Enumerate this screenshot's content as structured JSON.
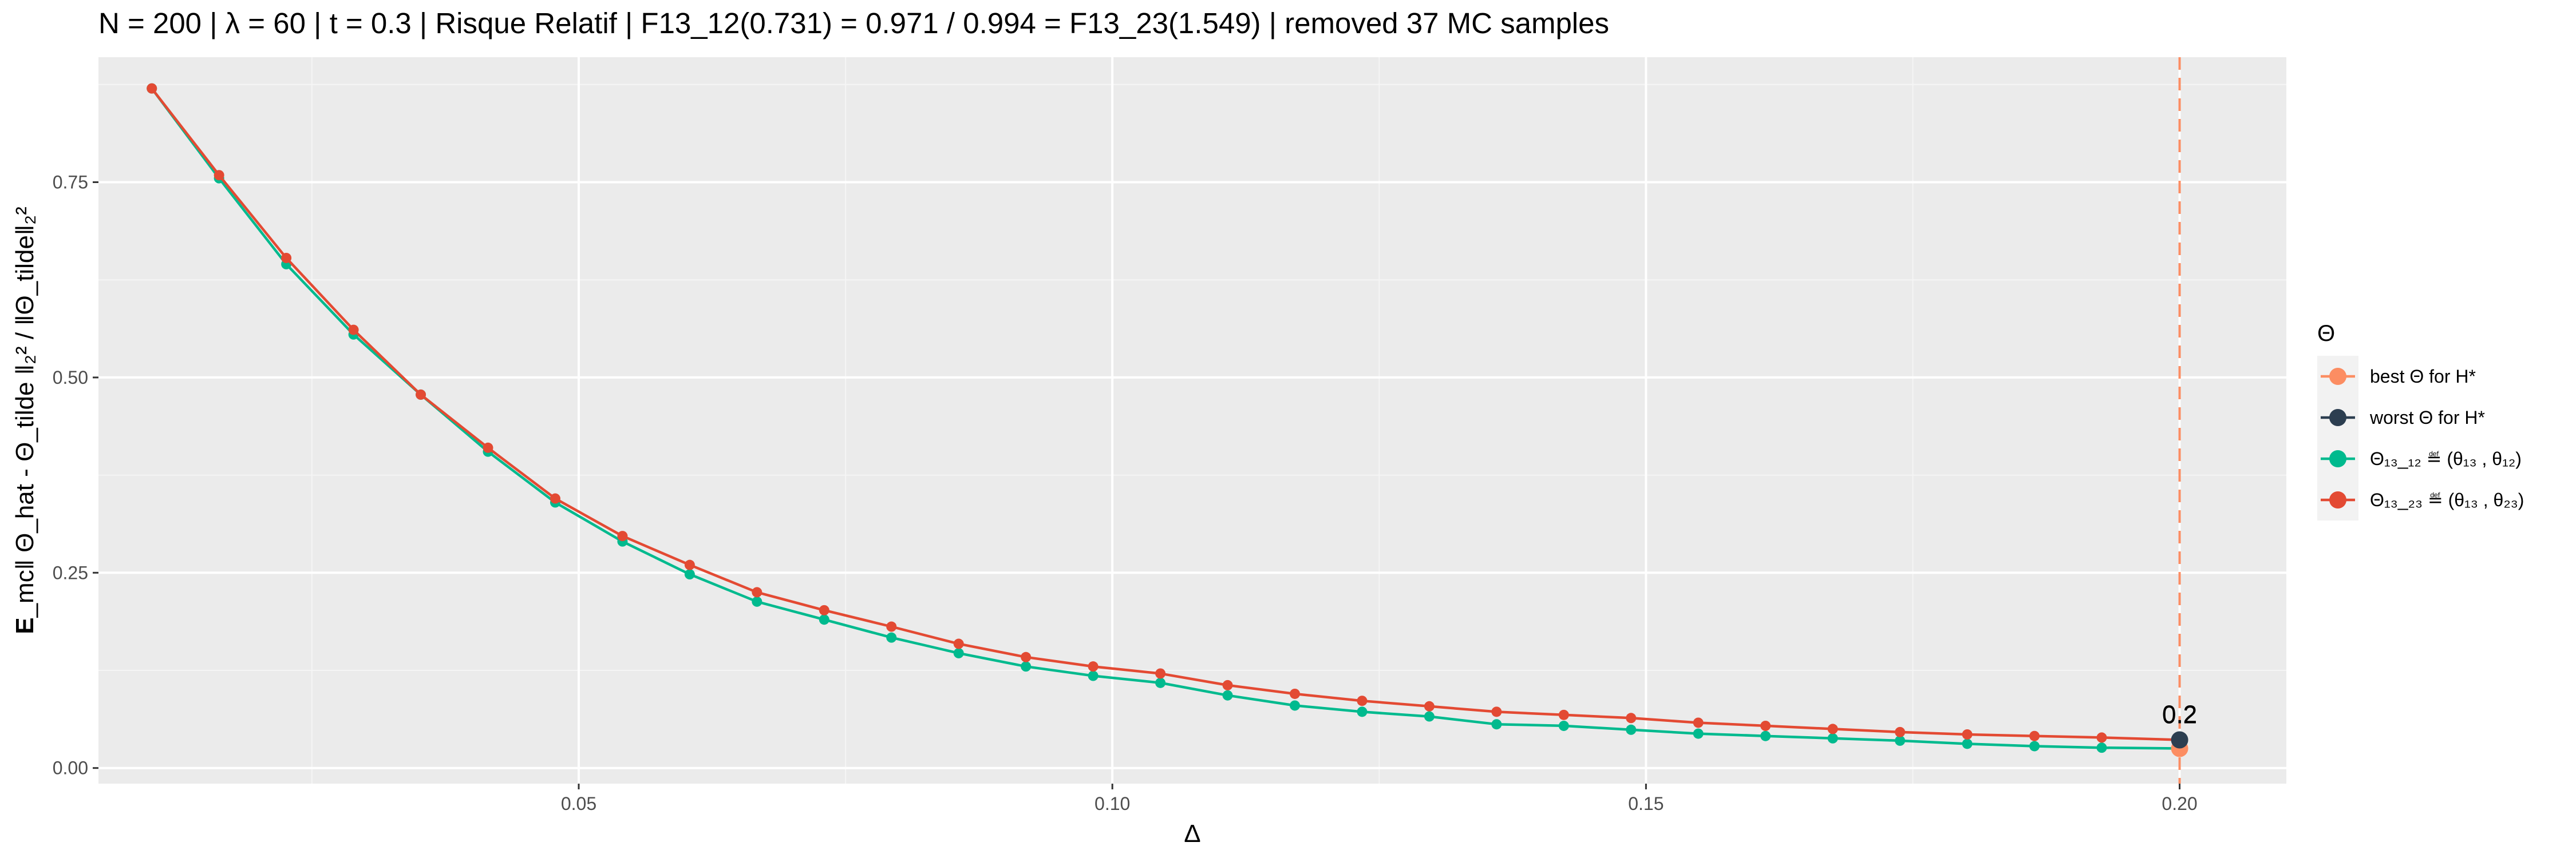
{
  "chart_data": {
    "type": "line",
    "title": "N = 200 | λ = 60 | t = 0.3 | Risque Relatif | F13_12(0.731) = 0.971 / 0.994 = F13_23(1.549) | removed 37 MC samples",
    "xlabel": "Δ",
    "ylabel": "E_mc‖ Θ_hat - Θ_tilde ‖₂² / ‖Θ_tilde‖₂²",
    "ylabel_bold": "E",
    "ylabel_rest": "_mc‖ Θ_hat - Θ_tilde ‖₂²  /  ‖Θ_tilde‖₂²",
    "xlim": [
      0.005,
      0.21
    ],
    "ylim": [
      -0.02,
      0.91
    ],
    "x_ticks": [
      0.05,
      0.1,
      0.15,
      0.2
    ],
    "x_tick_labels": [
      "0.05",
      "0.10",
      "0.15",
      "0.20"
    ],
    "y_ticks": [
      0.0,
      0.25,
      0.5,
      0.75
    ],
    "y_tick_labels": [
      "0.00",
      "0.25",
      "0.50",
      "0.75"
    ],
    "grid": true,
    "legend_position": "right",
    "legend_title": "Θ",
    "x": [
      0.01,
      0.0163,
      0.0226,
      0.0289,
      0.0352,
      0.0415,
      0.0478,
      0.0541,
      0.0604,
      0.0667,
      0.073,
      0.0793,
      0.0856,
      0.0919,
      0.0982,
      0.1045,
      0.1108,
      0.1171,
      0.1234,
      0.1297,
      0.136,
      0.1423,
      0.1486,
      0.1549,
      0.1612,
      0.1675,
      0.1738,
      0.1801,
      0.1864,
      0.1927,
      0.2
    ],
    "series": [
      {
        "name": "Θ₁₃_₁₂ ≝ (θ₁₃ , θ₁₂)",
        "color": "#00ba8e",
        "values": [
          0.87,
          0.755,
          0.645,
          0.555,
          0.478,
          0.405,
          0.34,
          0.29,
          0.248,
          0.213,
          0.19,
          0.167,
          0.147,
          0.13,
          0.118,
          0.109,
          0.093,
          0.08,
          0.072,
          0.066,
          0.056,
          0.054,
          0.049,
          0.044,
          0.041,
          0.038,
          0.035,
          0.031,
          0.028,
          0.026,
          0.025
        ]
      },
      {
        "name": "Θ₁₃_₂₃ ≝ (θ₁₃ , θ₂₃)",
        "color": "#e34a33",
        "values": [
          0.87,
          0.759,
          0.653,
          0.561,
          0.478,
          0.41,
          0.345,
          0.297,
          0.26,
          0.225,
          0.202,
          0.181,
          0.159,
          0.142,
          0.13,
          0.121,
          0.106,
          0.095,
          0.086,
          0.079,
          0.072,
          0.068,
          0.064,
          0.058,
          0.054,
          0.05,
          0.046,
          0.043,
          0.041,
          0.039,
          0.036
        ]
      }
    ],
    "highlight_points": [
      {
        "name": "best Θ for H*",
        "color": "#fc8d62",
        "x": 0.2,
        "y": 0.025,
        "label": "0.2"
      },
      {
        "name": "worst Θ for H*",
        "color": "#2c3e50",
        "x": 0.2,
        "y": 0.036,
        "label": "0.2"
      }
    ],
    "vline": {
      "x": 0.2,
      "color": "#fc8d62",
      "style": "dashed"
    }
  }
}
